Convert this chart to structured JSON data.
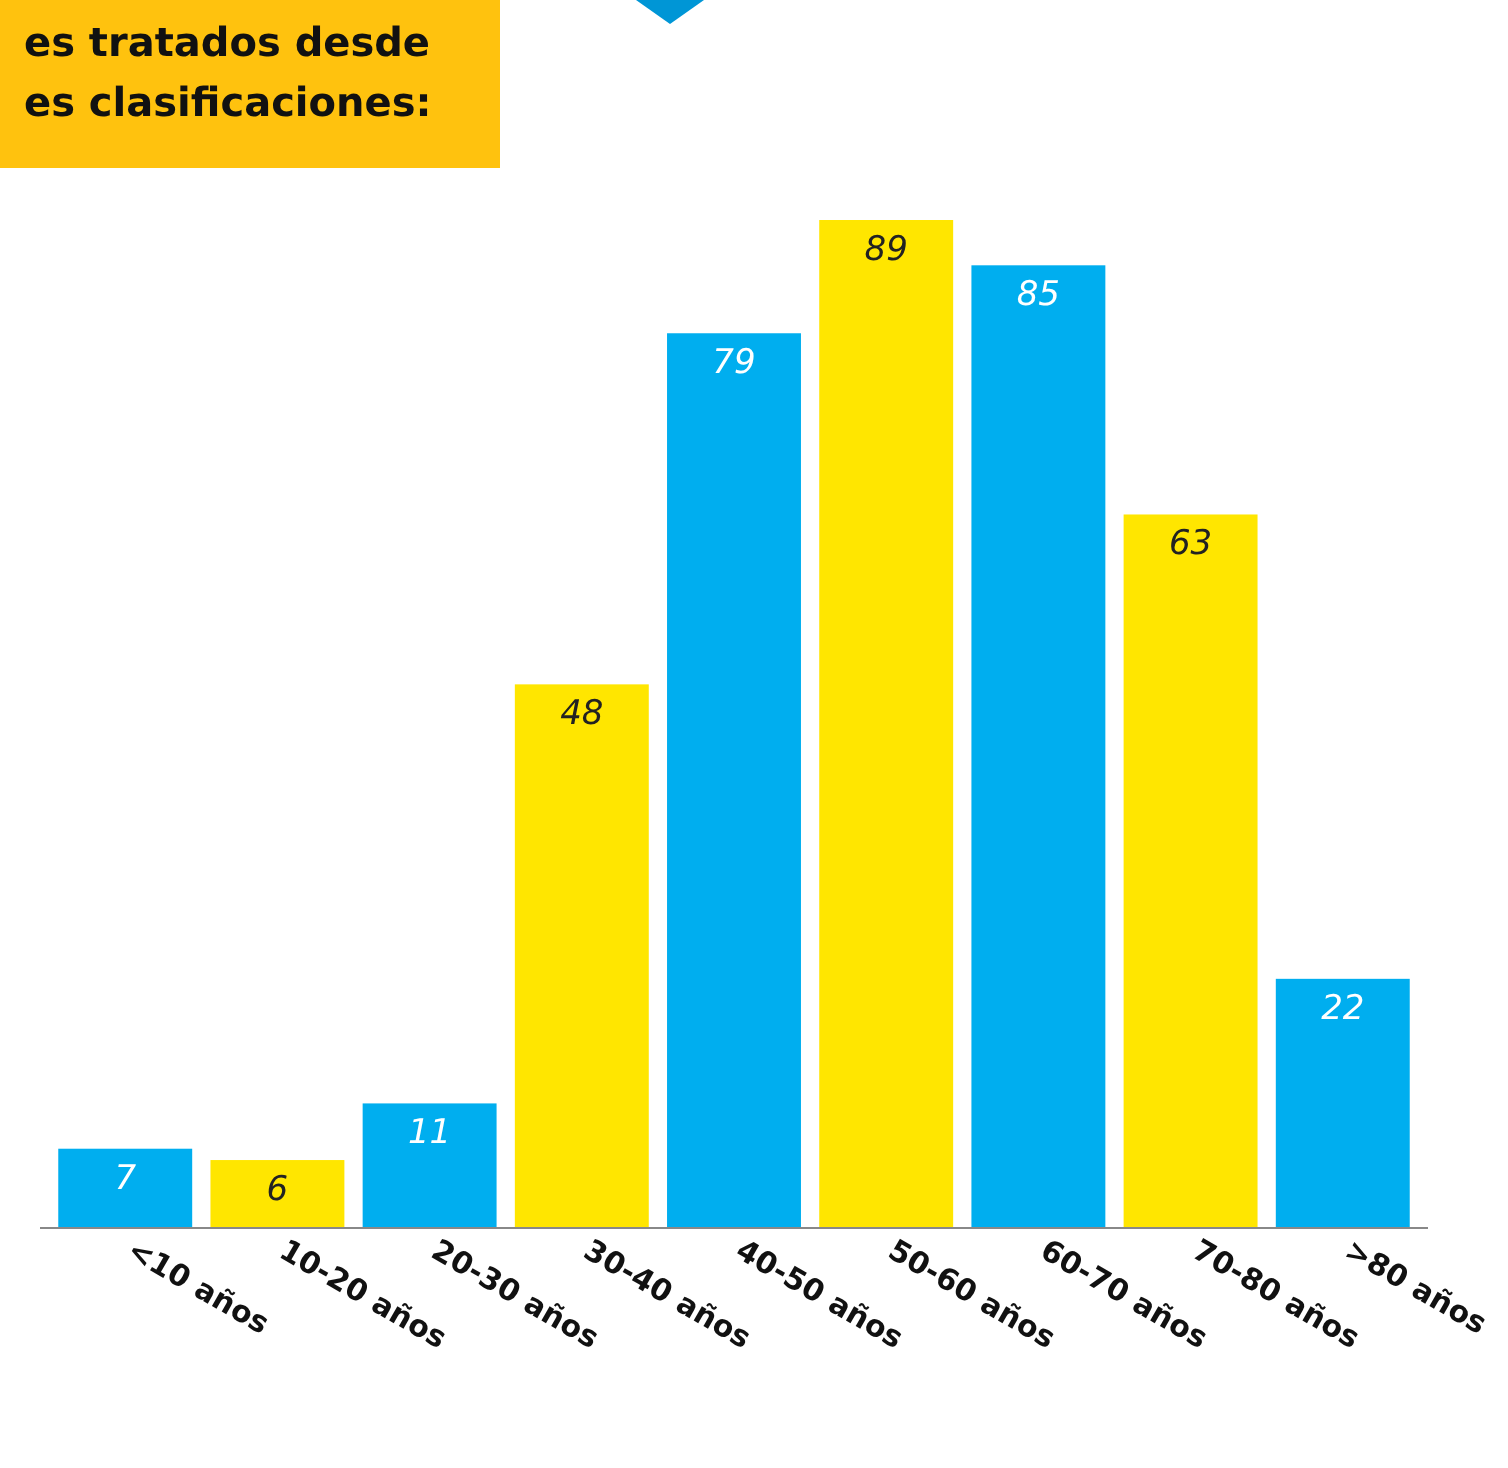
{
  "chart_data": {
    "type": "bar",
    "title": "es tratados desde\nes clasificaciones:",
    "categories": [
      "<10 años",
      "10-20 años",
      "20-30 años",
      "30-40 años",
      "40-50 años",
      "50-60 años",
      "60-70 años",
      "70-80 años",
      ">80 años"
    ],
    "values": [
      7,
      6,
      11,
      48,
      79,
      89,
      85,
      63,
      22
    ],
    "colors": [
      "#00aeef",
      "#ffe600",
      "#00aeef",
      "#ffe600",
      "#00aeef",
      "#ffe600",
      "#00aeef",
      "#ffe600",
      "#00aeef"
    ],
    "data_labels": true
  }
}
